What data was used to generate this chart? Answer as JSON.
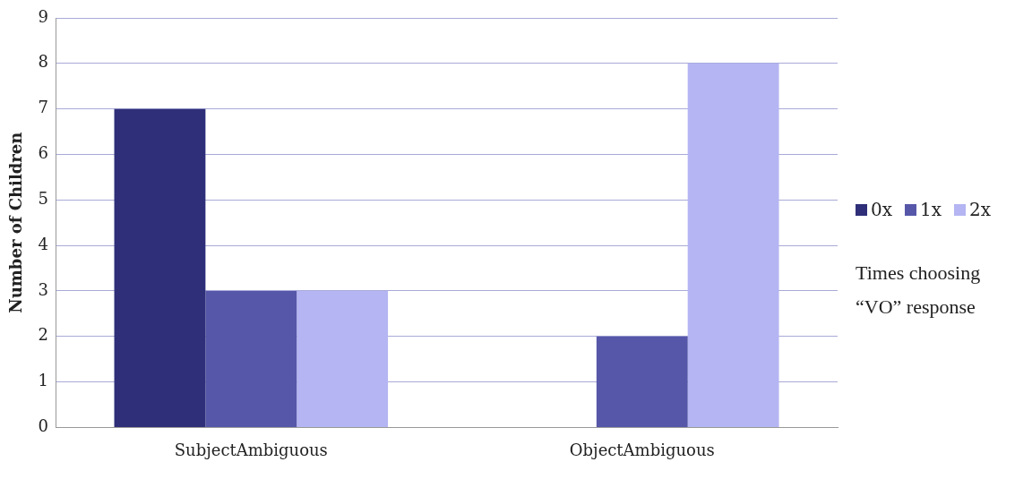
{
  "chart_data": {
    "type": "bar",
    "ylabel": "Number of Children",
    "categories": [
      "SubjectAmbiguous",
      "ObjectAmbiguous"
    ],
    "series": [
      {
        "name": "0x",
        "color": "#2e2f78",
        "values": [
          7,
          0
        ]
      },
      {
        "name": "1x",
        "color": "#5657a8",
        "values": [
          3,
          2
        ]
      },
      {
        "name": "2x",
        "color": "#b4b5f2",
        "values": [
          3,
          8
        ]
      }
    ],
    "ylim": [
      0,
      9
    ],
    "yticks": [
      0,
      1,
      2,
      3,
      4,
      5,
      6,
      7,
      8,
      9
    ],
    "grid": "y",
    "legend": "right",
    "annotations": [
      "Times choosing “VO” response"
    ]
  }
}
